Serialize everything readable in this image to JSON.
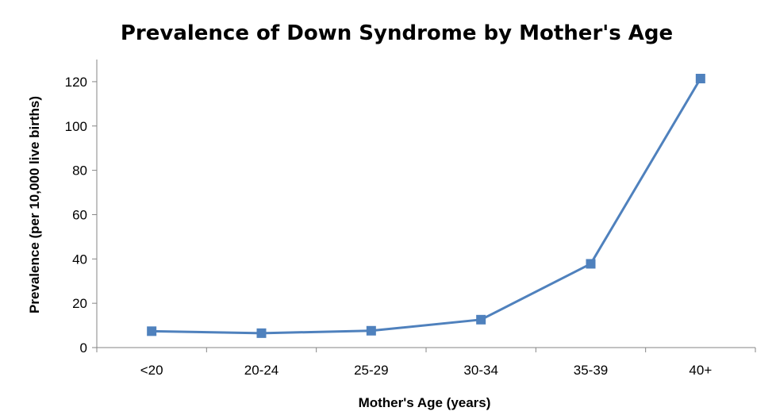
{
  "chart_data": {
    "type": "line",
    "title": "Prevalence of Down Syndrome by Mother's Age",
    "xlabel": "Mother's Age (years)",
    "ylabel": "Prevalence  (per 10,000 live births)",
    "categories": [
      "<20",
      "20-24",
      "25-29",
      "30-34",
      "35-39",
      "40+"
    ],
    "series": [
      {
        "values": [
          7.4,
          6.5,
          7.6,
          12.6,
          37.8,
          121.4
        ]
      }
    ],
    "ylim": [
      0,
      130
    ],
    "yticks": [
      "0",
      "20",
      "40",
      "60",
      "80",
      "100",
      "120"
    ],
    "grid": false,
    "legend": "none",
    "colors": {
      "series": "#4f81bd",
      "marker": "#4f81bd",
      "axis": "#868686"
    }
  }
}
